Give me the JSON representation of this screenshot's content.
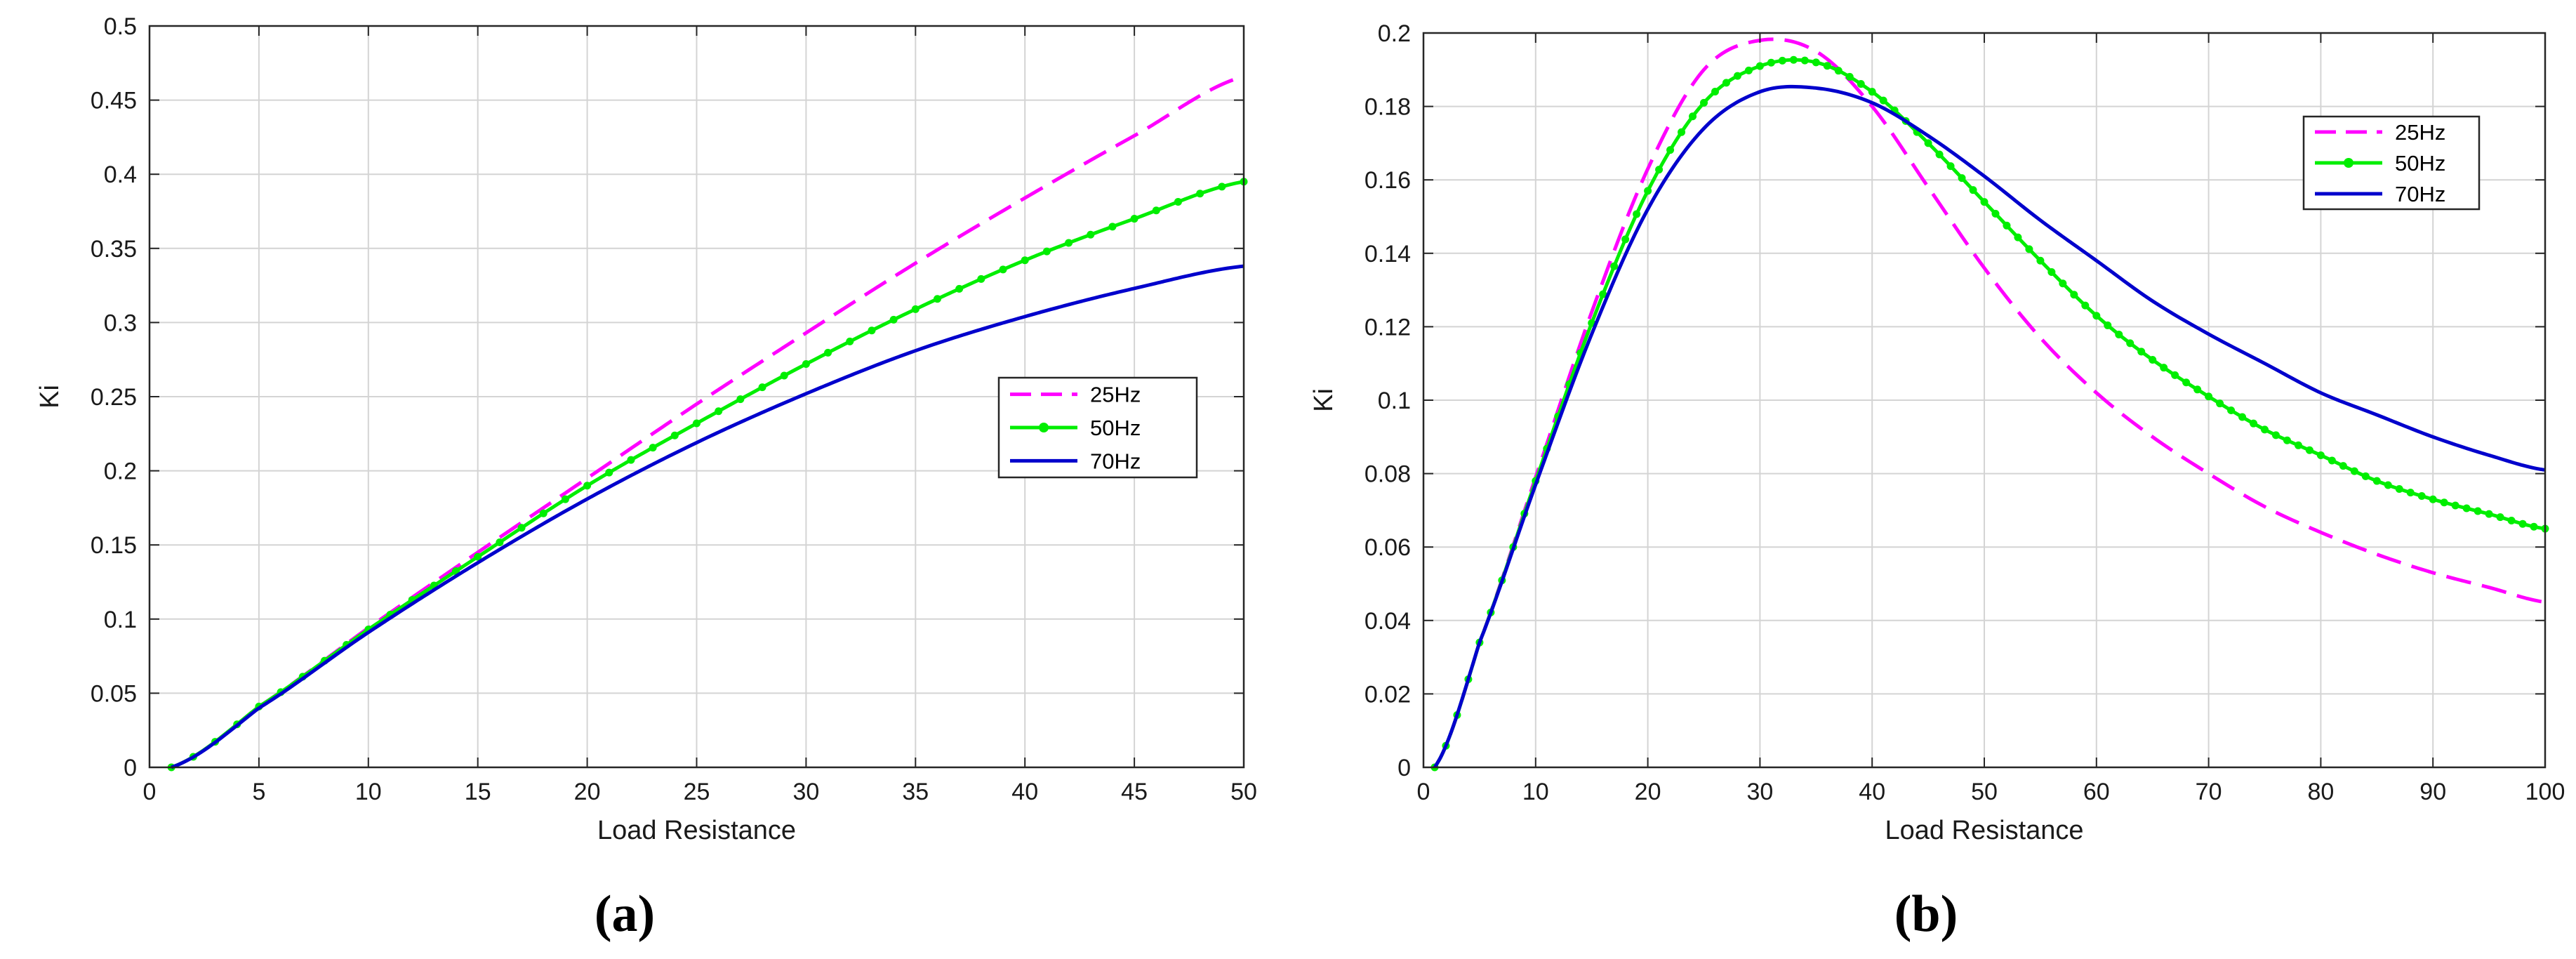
{
  "colors": {
    "25Hz": "#ff00ff",
    "50Hz": "#00ee00",
    "70Hz": "#0000cc",
    "grid": "#d4d4d4",
    "axis": "#262626"
  },
  "chart_data": [
    {
      "type": "line",
      "panel_label": "(a)",
      "xlabel": "Load Resistance",
      "ylabel": "Ki",
      "xlim": [
        0,
        50
      ],
      "ylim": [
        0,
        0.5
      ],
      "xticks": [
        0,
        5,
        10,
        15,
        20,
        25,
        30,
        35,
        40,
        45,
        50
      ],
      "xtick_labels": [
        "0",
        "5",
        "10",
        "15",
        "20",
        "25",
        "30",
        "35",
        "40",
        "45",
        "50"
      ],
      "yticks": [
        0,
        0.05,
        0.1,
        0.15,
        0.2,
        0.25,
        0.3,
        0.35,
        0.4,
        0.45,
        0.5
      ],
      "ytick_labels": [
        "0",
        "0.05",
        "0.1",
        "0.15",
        "0.2",
        "0.25",
        "0.3",
        "0.35",
        "0.4",
        "0.45",
        "0.5"
      ],
      "grid": true,
      "legend_position": "center-right",
      "x": [
        1,
        5,
        10,
        15,
        20,
        25,
        30,
        35,
        40,
        45,
        50
      ],
      "series": [
        {
          "name": "25Hz",
          "style": "dashed",
          "values": [
            0,
            0.041,
            0.094,
            0.145,
            0.195,
            0.245,
            0.293,
            0.34,
            0.384,
            0.426,
            0.466
          ]
        },
        {
          "name": "50Hz",
          "style": "solid-markers",
          "values": [
            0,
            0.041,
            0.093,
            0.142,
            0.19,
            0.232,
            0.272,
            0.309,
            0.342,
            0.37,
            0.395
          ]
        },
        {
          "name": "70Hz",
          "style": "solid",
          "values": [
            0,
            0.04,
            0.091,
            0.138,
            0.181,
            0.219,
            0.252,
            0.281,
            0.304,
            0.323,
            0.338
          ]
        }
      ]
    },
    {
      "type": "line",
      "panel_label": "(b)",
      "xlabel": "Load Resistance",
      "ylabel": "Ki",
      "xlim": [
        0,
        100
      ],
      "ylim": [
        0,
        0.2
      ],
      "xticks": [
        0,
        10,
        20,
        30,
        40,
        50,
        60,
        70,
        80,
        90,
        100
      ],
      "xtick_labels": [
        "0",
        "10",
        "20",
        "30",
        "40",
        "50",
        "60",
        "70",
        "80",
        "90",
        "100"
      ],
      "yticks": [
        0,
        0.02,
        0.04,
        0.06,
        0.08,
        0.1,
        0.12,
        0.14,
        0.16,
        0.18,
        0.2
      ],
      "ytick_labels": [
        "0",
        "0.02",
        "0.04",
        "0.06",
        "0.08",
        "0.1",
        "0.12",
        "0.14",
        "0.16",
        "0.18",
        "0.2"
      ],
      "grid": true,
      "legend_position": "top-right",
      "x": [
        1,
        5,
        10,
        15,
        20,
        25,
        30,
        35,
        40,
        45,
        50,
        55,
        60,
        65,
        70,
        75,
        80,
        85,
        90,
        95,
        100
      ],
      "series": [
        {
          "name": "25Hz",
          "style": "dashed",
          "values": [
            0,
            0.034,
            0.079,
            0.124,
            0.163,
            0.19,
            0.198,
            0.195,
            0.18,
            0.158,
            0.136,
            0.117,
            0.102,
            0.09,
            0.08,
            0.071,
            0.064,
            0.058,
            0.053,
            0.049,
            0.045
          ]
        },
        {
          "name": "50Hz",
          "style": "solid-markers",
          "values": [
            0,
            0.034,
            0.078,
            0.121,
            0.157,
            0.181,
            0.191,
            0.192,
            0.184,
            0.17,
            0.154,
            0.138,
            0.123,
            0.111,
            0.101,
            0.092,
            0.085,
            0.078,
            0.073,
            0.069,
            0.065
          ]
        },
        {
          "name": "70Hz",
          "style": "solid",
          "values": [
            0,
            0.034,
            0.077,
            0.118,
            0.152,
            0.174,
            0.184,
            0.185,
            0.181,
            0.172,
            0.161,
            0.149,
            0.138,
            0.127,
            0.118,
            0.11,
            0.102,
            0.096,
            0.09,
            0.085,
            0.081
          ]
        }
      ]
    }
  ]
}
